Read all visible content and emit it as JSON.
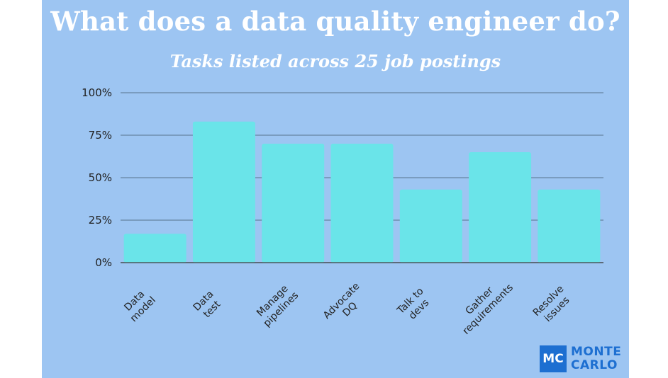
{
  "chart_data": {
    "type": "bar",
    "title": "What does a data quality engineer do?",
    "subtitle": "Tasks listed across 25 job postings",
    "categories": [
      [
        "Data",
        "model"
      ],
      [
        "Data",
        "test"
      ],
      [
        "Manage",
        "pipelines"
      ],
      [
        "Advocate",
        "DQ"
      ],
      [
        "Talk to",
        "devs"
      ],
      [
        "Gather",
        "requirements"
      ],
      [
        "Resolve",
        "issues"
      ]
    ],
    "values": [
      0.17,
      0.83,
      0.7,
      0.7,
      0.43,
      0.65,
      0.43
    ],
    "yticks": [
      0,
      0.25,
      0.5,
      0.75,
      1.0
    ],
    "ytick_labels": [
      "0%",
      "25%",
      "50%",
      "75%",
      "100%"
    ],
    "ylim": [
      0,
      1
    ],
    "grid": true,
    "xlabel": "",
    "ylabel": ""
  },
  "colors": {
    "background": "#9dc5f2",
    "bar": "#6ae4e9",
    "grid": "#6f8fae",
    "title": "#ffffff",
    "logo": "#1d6fd1"
  },
  "logo": {
    "mark": "MC",
    "line1": "MONTE",
    "line2": "CARLO"
  }
}
